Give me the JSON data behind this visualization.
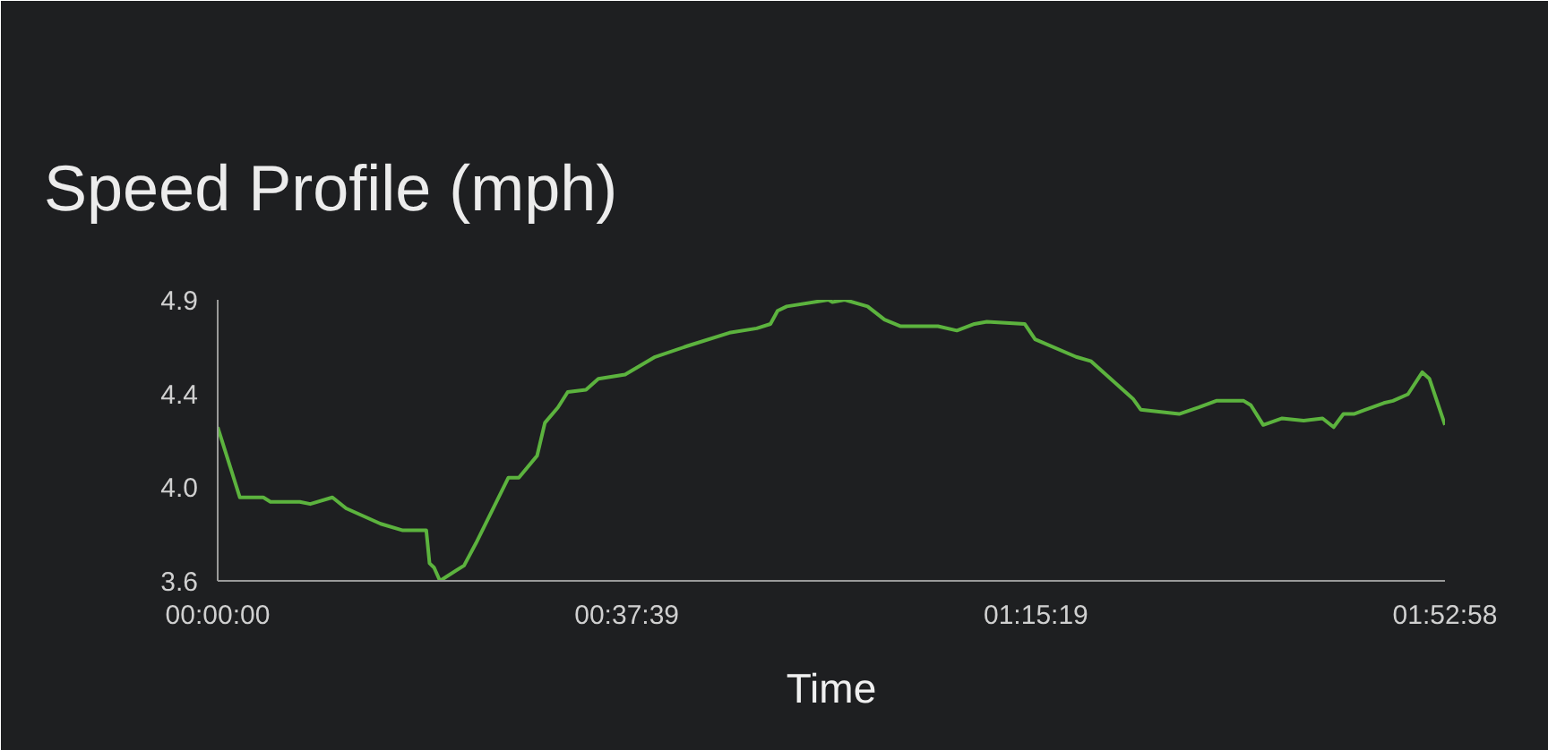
{
  "chart_data": {
    "type": "line",
    "title": "Speed Profile (mph)",
    "xlabel": "Time",
    "x": [
      0,
      0.034,
      0.07,
      0.081,
      0.126,
      0.142,
      0.176,
      0.197,
      0.25,
      0.284,
      0.32,
      0.325,
      0.332,
      0.341,
      0.378,
      0.396,
      0.446,
      0.462,
      0.49,
      0.502,
      0.522,
      0.537,
      0.565,
      0.584,
      0.625,
      0.671,
      0.721,
      0.785,
      0.827,
      0.848,
      0.859,
      0.873,
      0.937,
      0.943,
      0.962,
      0.997,
      1.023,
      1.047,
      1.105,
      1.134,
      1.161,
      1.18,
      1.238,
      1.254,
      1.317,
      1.34,
      1.404,
      1.416,
      1.475,
      1.505,
      1.532,
      1.574,
      1.585,
      1.604,
      1.633,
      1.666,
      1.695,
      1.712,
      1.727,
      1.743,
      1.789,
      1.803,
      1.826,
      1.848,
      1.859,
      1.8828
    ],
    "series": [
      {
        "color": "#5cb33e",
        "values": [
          4.28,
          3.96,
          3.96,
          3.94,
          3.94,
          3.93,
          3.96,
          3.91,
          3.84,
          3.81,
          3.81,
          3.66,
          3.64,
          3.58,
          3.65,
          3.75,
          4.05,
          4.05,
          4.15,
          4.3,
          4.37,
          4.44,
          4.45,
          4.5,
          4.52,
          4.6,
          4.65,
          4.71,
          4.73,
          4.75,
          4.81,
          4.83,
          4.86,
          4.85,
          4.86,
          4.83,
          4.77,
          4.74,
          4.74,
          4.72,
          4.75,
          4.76,
          4.75,
          4.68,
          4.6,
          4.58,
          4.41,
          4.36,
          4.34,
          4.37,
          4.4,
          4.4,
          4.38,
          4.29,
          4.32,
          4.31,
          4.32,
          4.28,
          4.34,
          4.34,
          4.39,
          4.4,
          4.43,
          4.53,
          4.5,
          4.29
        ]
      }
    ],
    "xlim": [
      0,
      1.8828
    ],
    "xticks": [
      {
        "value": 0,
        "label": "00:00:00"
      },
      {
        "value": 0.6276,
        "label": "00:37:39"
      },
      {
        "value": 1.2553,
        "label": "01:15:19"
      },
      {
        "value": 1.8828,
        "label": "01:52:58"
      }
    ],
    "ylim": [
      3.58,
      4.86
    ],
    "yticks": [
      {
        "value": 3.58,
        "label": "3.6"
      },
      {
        "value": 4.007,
        "label": "4.0"
      },
      {
        "value": 4.433,
        "label": "4.4"
      },
      {
        "value": 4.86,
        "label": "4.9"
      }
    ],
    "grid": false,
    "marker": "none",
    "line_style": "solid"
  }
}
